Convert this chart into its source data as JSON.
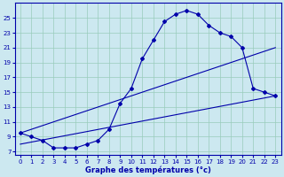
{
  "xlabel": "Graphe des températures (°c)",
  "bg_color": "#cce8f0",
  "grid_color": "#99ccbb",
  "line_color": "#0000aa",
  "xlim": [
    -0.5,
    23.5
  ],
  "ylim": [
    6.5,
    27
  ],
  "yticks": [
    7,
    9,
    11,
    13,
    15,
    17,
    19,
    21,
    23,
    25
  ],
  "xticks": [
    0,
    1,
    2,
    3,
    4,
    5,
    6,
    7,
    8,
    9,
    10,
    11,
    12,
    13,
    14,
    15,
    16,
    17,
    18,
    19,
    20,
    21,
    22,
    23
  ],
  "curve1_x": [
    0,
    1,
    2,
    3,
    4,
    5,
    6,
    7,
    8,
    9,
    10,
    11,
    12,
    13,
    14,
    15,
    16,
    17,
    18,
    19,
    20,
    21,
    22,
    23
  ],
  "curve1_y": [
    9.5,
    9.0,
    8.5,
    7.5,
    7.5,
    7.5,
    8.0,
    8.5,
    10.0,
    13.5,
    15.5,
    19.5,
    22.0,
    24.5,
    25.5,
    26.0,
    25.5,
    24.0,
    23.0,
    22.5,
    21.0,
    15.5,
    15.0,
    14.5
  ],
  "line2_x": [
    0,
    23
  ],
  "line2_y": [
    9.5,
    21.0
  ],
  "line3_x": [
    0,
    23
  ],
  "line3_y": [
    8.0,
    14.5
  ],
  "curve2_x": [
    8,
    9,
    10
  ],
  "curve2_y": [
    10.0,
    13.5,
    16.0
  ]
}
